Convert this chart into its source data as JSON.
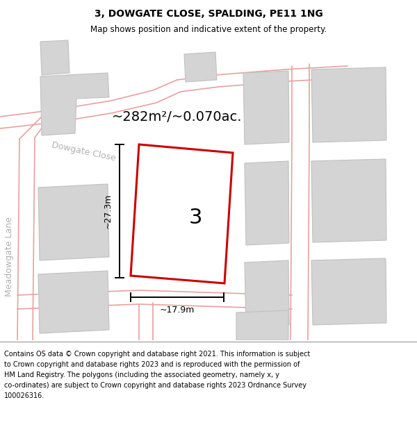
{
  "title_line1": "3, DOWGATE CLOSE, SPALDING, PE11 1NG",
  "title_line2": "Map shows position and indicative extent of the property.",
  "area_label": "~282m²/~0.070ac.",
  "plot_number": "3",
  "dim_height": "~27.3m",
  "dim_width": "~17.9m",
  "road_label1": "Dowgate Close",
  "road_label2": "Meadowgate Lane",
  "footer_text": "Contains OS data © Crown copyright and database right 2021. This information is subject to Crown copyright and database rights 2023 and is reproduced with the permission of HM Land Registry. The polygons (including the associated geometry, namely x, y co-ordinates) are subject to Crown copyright and database rights 2023 Ordnance Survey 100026316.",
  "bg_color": "#f0f0f0",
  "map_bg": "#f0f0f0",
  "building_fill": "#d4d4d4",
  "building_edge": "#c0c0c0",
  "red_plot_color": "#cc0000",
  "road_color": "#e8a0a0",
  "dim_color": "#000000",
  "text_color": "#000000",
  "road_text_color": "#b0b0b0",
  "title_fontsize": 10,
  "subtitle_fontsize": 8.5,
  "area_fontsize": 14,
  "plot_num_fontsize": 22,
  "dim_fontsize": 9,
  "road_fontsize": 9,
  "footer_fontsize": 7
}
